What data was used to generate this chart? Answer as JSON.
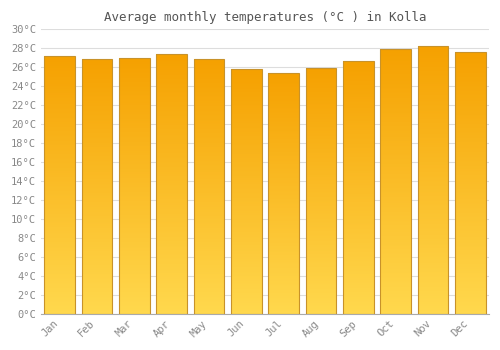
{
  "months": [
    "Jan",
    "Feb",
    "Mar",
    "Apr",
    "May",
    "Jun",
    "Jul",
    "Aug",
    "Sep",
    "Oct",
    "Nov",
    "Dec"
  ],
  "temperatures": [
    27.2,
    26.9,
    27.0,
    27.4,
    26.9,
    25.8,
    25.4,
    25.9,
    26.7,
    27.9,
    28.3,
    27.6
  ],
  "title": "Average monthly temperatures (°C ) in Kolla",
  "ylim": [
    0,
    30
  ],
  "bar_color_top": "#F5A000",
  "bar_color_bottom": "#FFD84D",
  "bar_edge_color": "#C8922A",
  "background_color": "#FFFFFF",
  "grid_color": "#DDDDDD",
  "title_color": "#555555",
  "tick_color": "#888888",
  "font_family": "monospace",
  "bar_width": 0.82
}
